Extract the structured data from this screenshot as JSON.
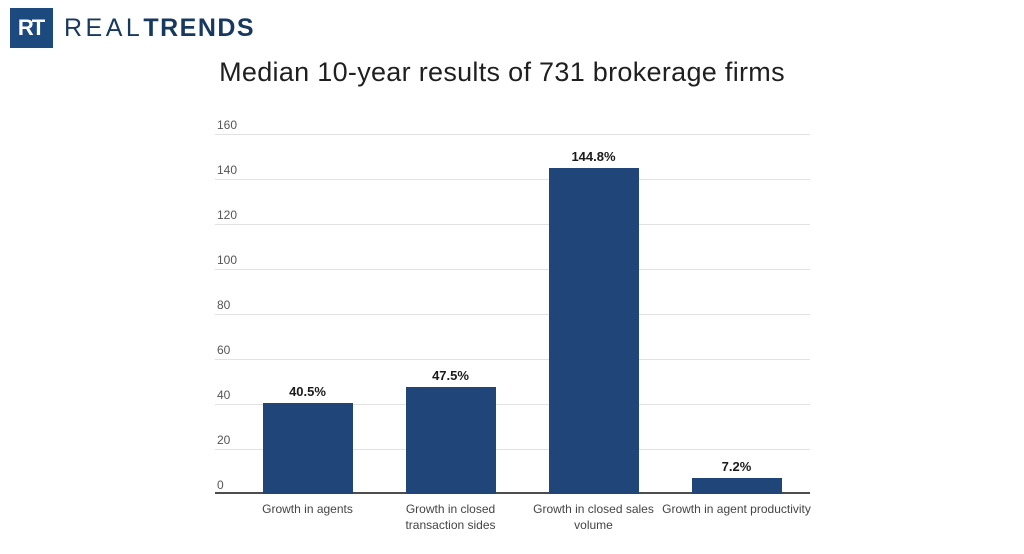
{
  "header": {
    "logo": {
      "icon_text": "RT",
      "brand_light": "REAL",
      "brand_bold": "TRENDS"
    }
  },
  "colors": {
    "bar": "#1f4579",
    "logo_box": "#1c4a7e",
    "logo_text": "#17395f",
    "gridline": "#e2e2e2",
    "axis_line": "#4d4d4d"
  },
  "chart_data": {
    "type": "bar",
    "title": "Median 10-year results of 731 brokerage firms",
    "categories": [
      "Growth in agents",
      "Growth in closed transaction sides",
      "Growth in closed sales volume",
      "Growth in agent productivity"
    ],
    "values": [
      40.5,
      47.5,
      144.8,
      7.2
    ],
    "value_labels": [
      "40.5%",
      "47.5%",
      "144.8%",
      "7.2%"
    ],
    "yticks": [
      0,
      20,
      40,
      60,
      80,
      100,
      120,
      140,
      160
    ],
    "ylim": [
      0,
      160
    ],
    "xlabel": "",
    "ylabel": "",
    "grid": true,
    "legend": "none",
    "bar_color": "#1f4579"
  }
}
